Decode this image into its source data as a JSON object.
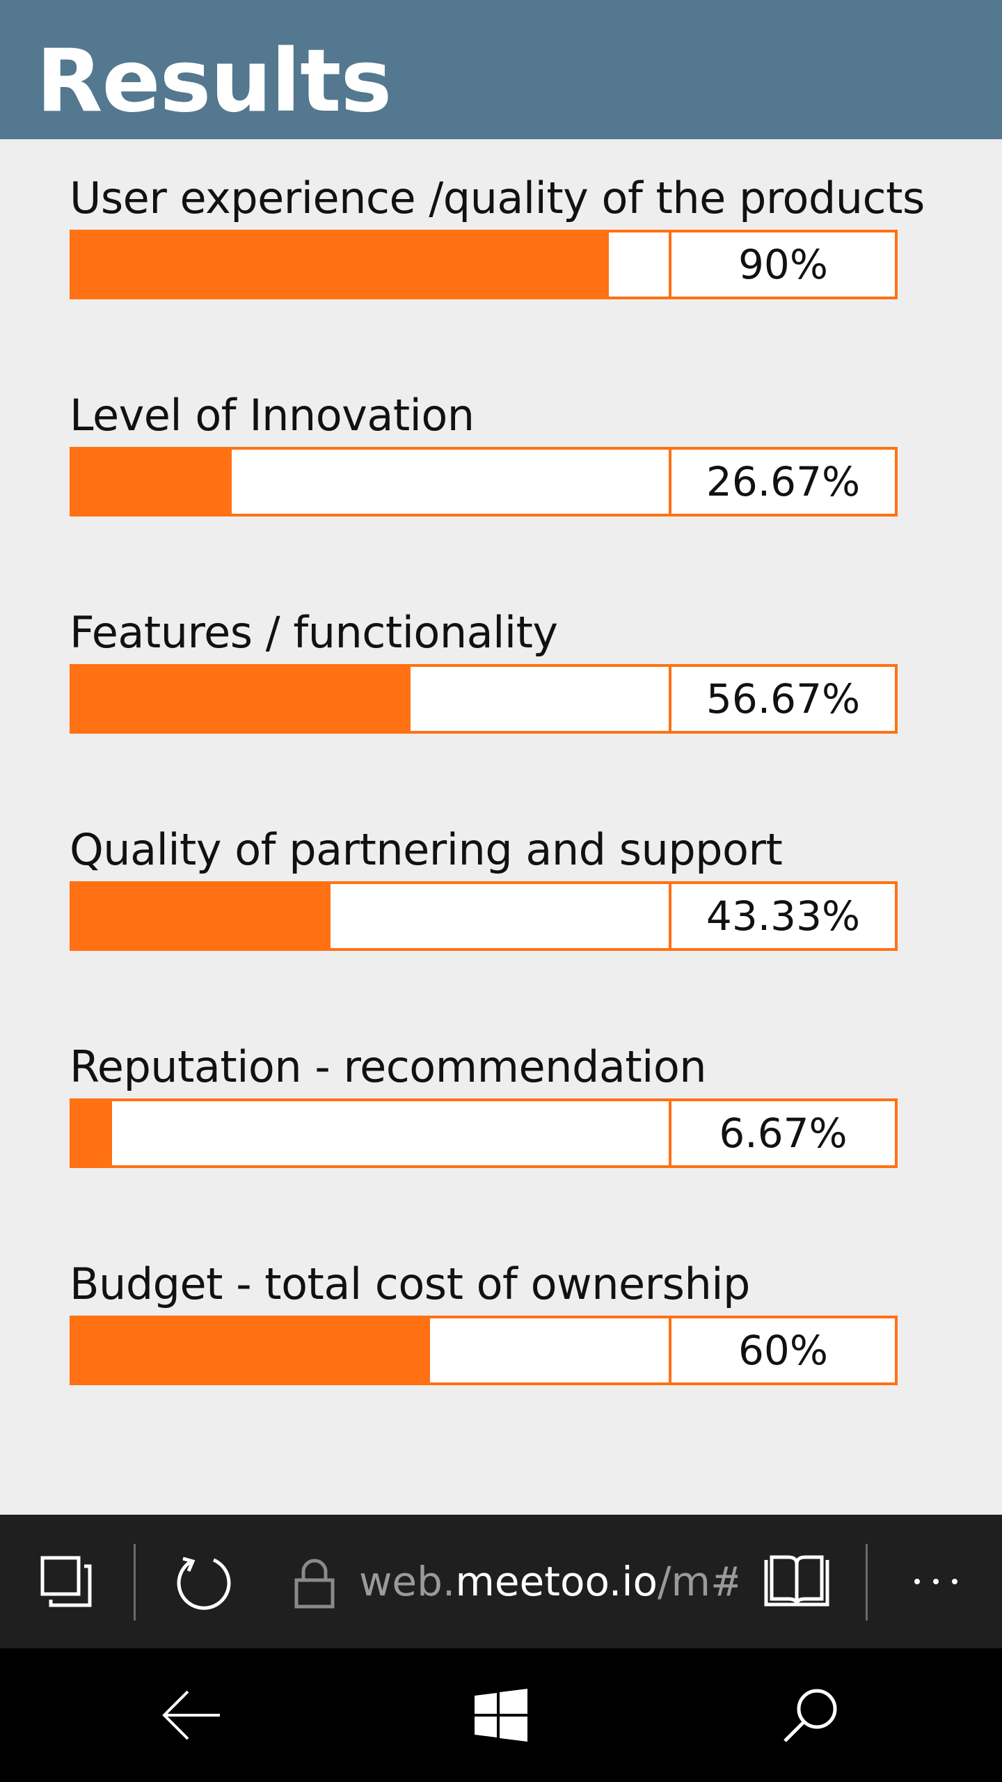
{
  "header": {
    "title": "Results"
  },
  "colors": {
    "header_bg": "#53788f",
    "bar_accent": "#ff7113",
    "page_bg": "#eeeeee",
    "browser_bar_bg": "#1f1f1f",
    "nav_bar_bg": "#000000"
  },
  "results": [
    {
      "label": "User experience /quality of the products",
      "value_text": "90%",
      "fill_fraction": 0.9
    },
    {
      "label": "Level of Innovation",
      "value_text": "26.67%",
      "fill_fraction": 0.2667
    },
    {
      "label": "Features / functionality",
      "value_text": "56.67%",
      "fill_fraction": 0.5667
    },
    {
      "label": "Quality of partnering and support",
      "value_text": "43.33%",
      "fill_fraction": 0.4333
    },
    {
      "label": "Reputation - recommendation",
      "value_text": "6.67%",
      "fill_fraction": 0.0667
    },
    {
      "label": "Budget - total cost of ownership",
      "value_text": "60%",
      "fill_fraction": 0.6
    }
  ],
  "browser_bar": {
    "url_prefix": "web.",
    "url_host": "meetoo.io",
    "url_suffix": "/m#/",
    "icons": [
      "tabs-icon",
      "refresh-icon",
      "lock-icon",
      "reading-view-icon",
      "more-icon"
    ]
  },
  "nav_bar": {
    "icons": [
      "back-arrow-icon",
      "windows-start-icon",
      "search-icon"
    ]
  }
}
